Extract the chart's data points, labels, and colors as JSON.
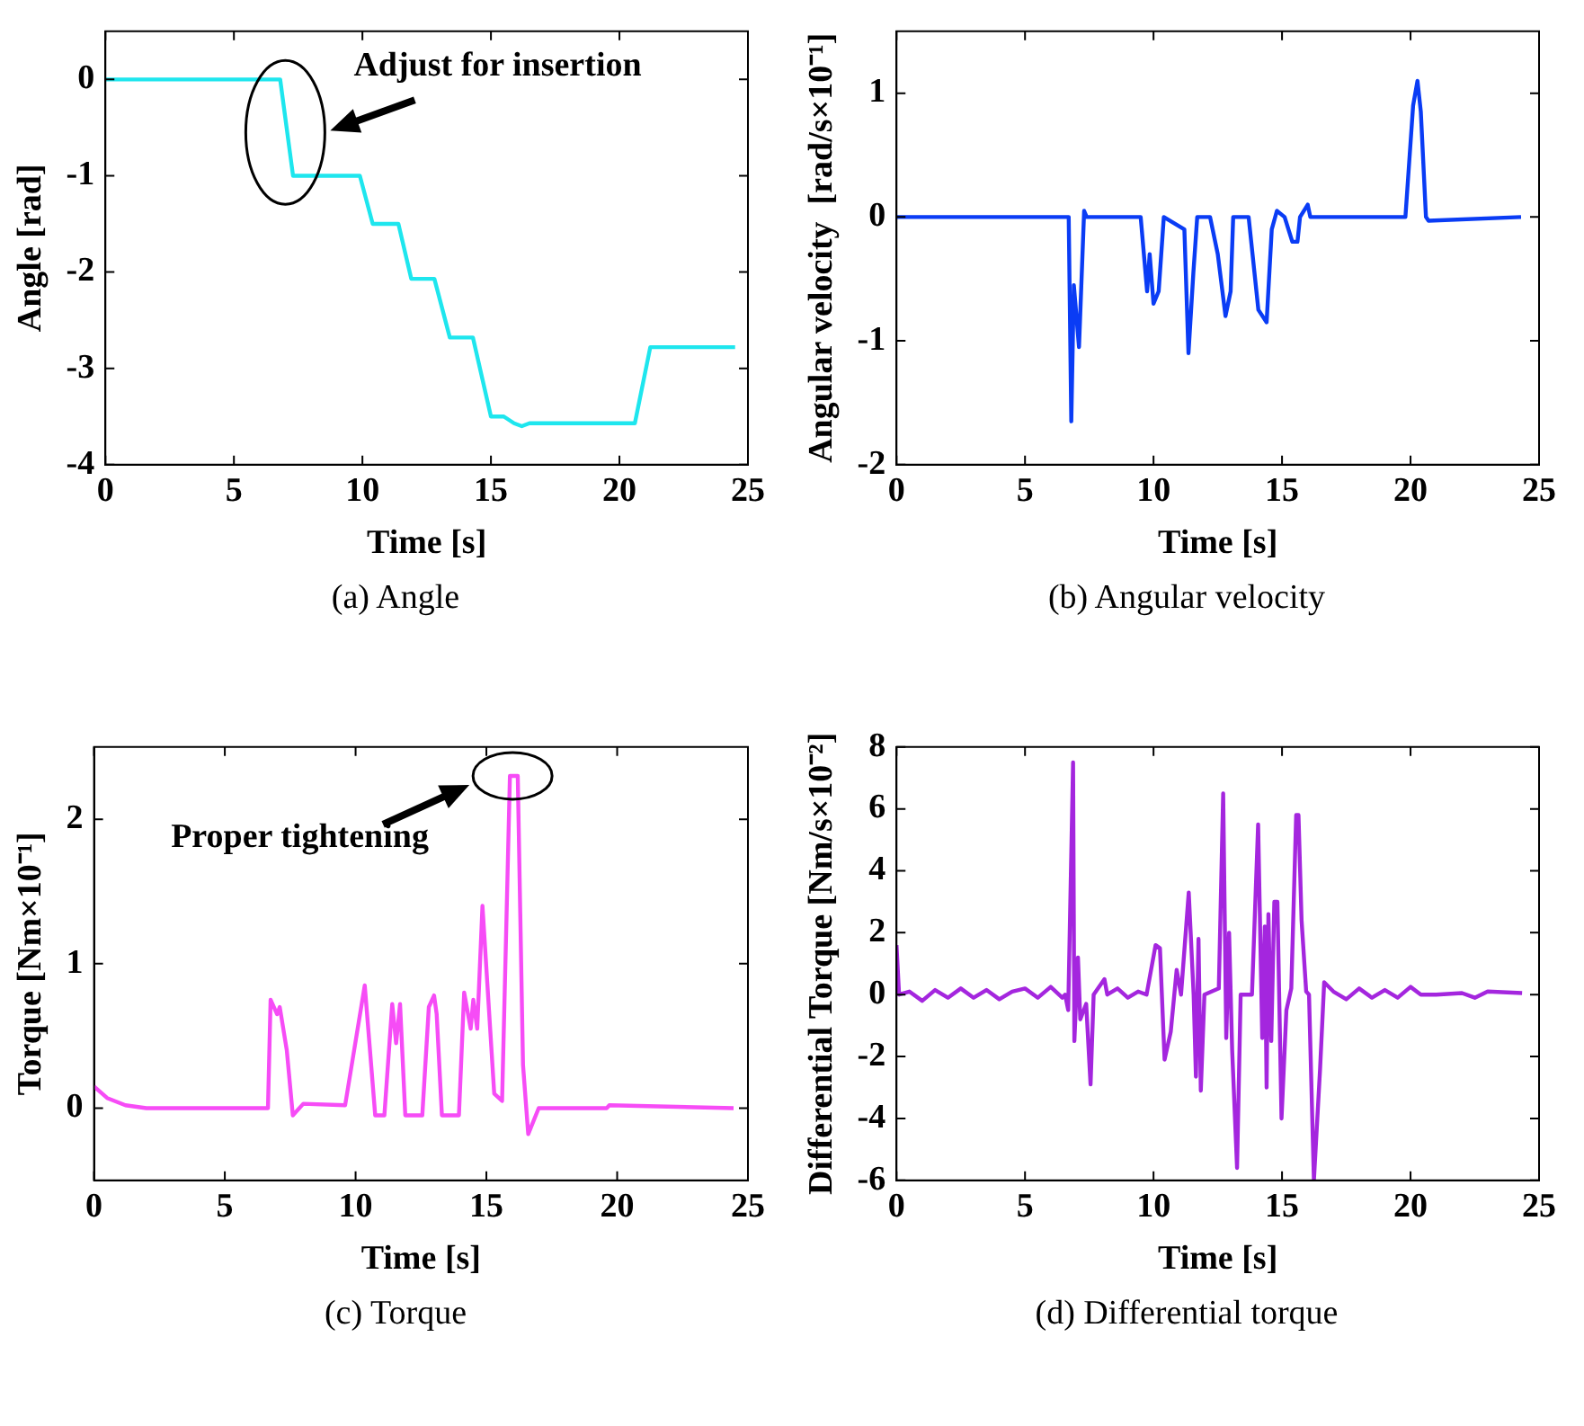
{
  "chart_data": [
    {
      "type": "line",
      "title": "(a)  Angle",
      "xlabel": "Time [s]",
      "ylabel": "Angle [rad]",
      "xlim": [
        0,
        25
      ],
      "ylim": [
        -4,
        0.5
      ],
      "xticks": [
        0,
        5,
        10,
        15,
        20,
        25
      ],
      "yticks": [
        -4,
        -3,
        -2,
        -1,
        0
      ],
      "x": [
        0,
        6.8,
        7.3,
        9.9,
        10.4,
        11.4,
        11.9,
        12.8,
        13.4,
        14.3,
        15.0,
        15.5,
        15.9,
        16.2,
        16.5,
        20.6,
        21.2,
        24.5
      ],
      "series": [
        {
          "color": "#1ee6ee",
          "values": [
            0,
            0,
            -1.0,
            -1.0,
            -1.5,
            -1.5,
            -2.07,
            -2.07,
            -2.68,
            -2.68,
            -3.5,
            -3.5,
            -3.57,
            -3.6,
            -3.57,
            -3.57,
            -2.78,
            -2.78
          ]
        }
      ],
      "annotations": [
        {
          "text": "Adjust for insertion",
          "x": 7.0,
          "y": -0.55
        }
      ]
    },
    {
      "type": "line",
      "title": "(b)  Angular velocity",
      "xlabel": "Time [s]",
      "ylabel": "Angular velocity  [rad/s×10⁻¹]",
      "xlim": [
        0,
        25
      ],
      "ylim": [
        -2,
        1.5
      ],
      "xticks": [
        0,
        5,
        10,
        15,
        20,
        25
      ],
      "yticks": [
        -2,
        -1,
        0,
        1
      ],
      "x": [
        0,
        6.7,
        6.8,
        6.9,
        7.1,
        7.3,
        7.4,
        9.5,
        9.75,
        9.85,
        10.0,
        10.2,
        10.4,
        11.2,
        11.36,
        11.55,
        11.7,
        12.2,
        12.5,
        12.8,
        13.0,
        13.1,
        13.7,
        14.08,
        14.4,
        14.6,
        14.8,
        15.1,
        15.4,
        15.6,
        15.7,
        16.0,
        16.1,
        19.8,
        20.1,
        20.27,
        20.4,
        20.6,
        20.7,
        24.3
      ],
      "series": [
        {
          "color": "#0a3cf5",
          "values": [
            0,
            0,
            -1.65,
            -0.55,
            -1.05,
            0.05,
            0,
            0,
            -0.6,
            -0.3,
            -0.7,
            -0.6,
            0,
            -0.1,
            -1.1,
            -0.45,
            0,
            0,
            -0.3,
            -0.8,
            -0.6,
            0,
            0,
            -0.75,
            -0.85,
            -0.1,
            0.05,
            0,
            -0.2,
            -0.2,
            0,
            0.1,
            0,
            0,
            0.9,
            1.1,
            0.85,
            0,
            -0.03,
            0
          ]
        }
      ]
    },
    {
      "type": "line",
      "title": "(c)  Torque",
      "xlabel": "Time [s]",
      "ylabel": "Torque [Nm×10⁻¹]",
      "xlim": [
        0,
        25
      ],
      "ylim": [
        -0.5,
        2.5
      ],
      "xticks": [
        0,
        5,
        10,
        15,
        20,
        25
      ],
      "yticks": [
        0,
        1,
        2
      ],
      "x": [
        0,
        0.5,
        1.2,
        2,
        6.65,
        6.75,
        7.0,
        7.1,
        7.37,
        7.6,
        8.0,
        9.6,
        10.35,
        10.75,
        11.1,
        11.4,
        11.55,
        11.7,
        11.9,
        12.55,
        12.8,
        13.0,
        13.1,
        13.3,
        13.95,
        14.15,
        14.4,
        14.5,
        14.65,
        14.85,
        15.3,
        15.6,
        15.9,
        16.2,
        16.4,
        16.6,
        17.0,
        19.6,
        19.7,
        24.45
      ],
      "series": [
        {
          "color": "#f64cf6",
          "values": [
            0.15,
            0.07,
            0.02,
            0,
            0,
            0.75,
            0.65,
            0.7,
            0.4,
            -0.05,
            0.03,
            0.02,
            0.85,
            -0.05,
            -0.05,
            0.72,
            0.45,
            0.72,
            -0.05,
            -0.05,
            0.7,
            0.78,
            0.65,
            -0.05,
            -0.05,
            0.8,
            0.55,
            0.75,
            0.55,
            1.4,
            0.1,
            0.05,
            2.3,
            2.3,
            0.3,
            -0.18,
            0,
            0,
            0.02,
            0
          ]
        }
      ],
      "annotations": [
        {
          "text": "Proper tightening",
          "x": 16.0,
          "y": 2.3
        }
      ]
    },
    {
      "type": "line",
      "title": "(d)  Differential torque",
      "xlabel": "Time [s]",
      "ylabel": "Differential Torque [Nm/s×10⁻²]",
      "xlim": [
        0,
        25
      ],
      "ylim": [
        -6,
        8
      ],
      "xticks": [
        0,
        5,
        10,
        15,
        20,
        25
      ],
      "yticks": [
        -6,
        -4,
        -2,
        0,
        2,
        4,
        6,
        8
      ],
      "x": [
        0,
        0.1,
        0.5,
        1,
        1.5,
        2,
        2.5,
        3,
        3.5,
        4,
        4.5,
        5,
        5.5,
        6,
        6.45,
        6.56,
        6.68,
        6.87,
        6.92,
        7.06,
        7.15,
        7.38,
        7.55,
        7.67,
        8.09,
        8.2,
        8.6,
        9.0,
        9.4,
        9.73,
        10.08,
        10.25,
        10.43,
        10.67,
        10.9,
        11.07,
        11.37,
        11.56,
        11.65,
        11.75,
        11.84,
        11.98,
        12.54,
        12.71,
        12.83,
        12.94,
        13.06,
        13.25,
        13.39,
        13.83,
        14.07,
        14.23,
        14.33,
        14.4,
        14.47,
        14.58,
        14.7,
        14.82,
        14.98,
        15.17,
        15.36,
        15.55,
        15.64,
        15.76,
        15.94,
        16.05,
        16.24,
        16.48,
        16.64,
        17.0,
        17.5,
        18.0,
        18.5,
        19.0,
        19.5,
        20.0,
        20.4,
        21,
        22,
        22.5,
        23,
        24.34
      ],
      "series": [
        {
          "color": "#a426de",
          "values": [
            1.6,
            0,
            0.1,
            -0.2,
            0.15,
            -0.1,
            0.2,
            -0.1,
            0.15,
            -0.15,
            0.1,
            0.2,
            -0.1,
            0.25,
            -0.1,
            0,
            -0.5,
            7.5,
            -1.5,
            1.2,
            -0.8,
            -0.3,
            -2.9,
            0,
            0.5,
            0,
            0.2,
            -0.1,
            0.1,
            0,
            1.6,
            1.5,
            -2.1,
            -1.2,
            0.8,
            0,
            3.3,
            0,
            -2.65,
            1.8,
            -3.1,
            0,
            0.2,
            6.5,
            -1.4,
            2.0,
            -1.8,
            -5.6,
            0,
            0,
            5.5,
            -1.4,
            2.2,
            -3.0,
            2.6,
            -1.5,
            3.0,
            3.0,
            -4.0,
            -0.5,
            0.2,
            5.8,
            5.8,
            2.4,
            0.1,
            0,
            -6.0,
            -2.4,
            0.4,
            0.1,
            -0.15,
            0.2,
            -0.1,
            0.15,
            -0.1,
            0.25,
            0,
            0,
            0.05,
            -0.1,
            0.1,
            0.05
          ]
        }
      ]
    }
  ]
}
